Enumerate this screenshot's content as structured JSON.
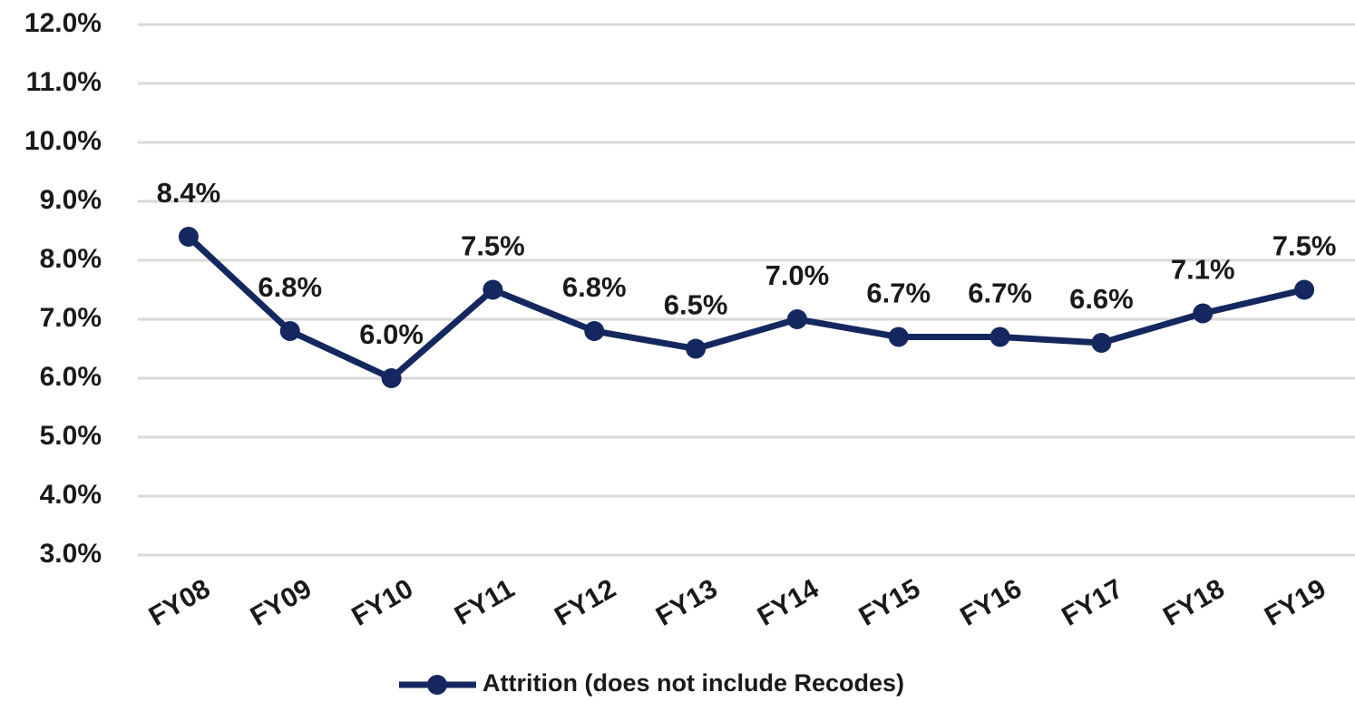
{
  "chart_data": {
    "type": "line",
    "categories": [
      "FY08",
      "FY09",
      "FY10",
      "FY11",
      "FY12",
      "FY13",
      "FY14",
      "FY15",
      "FY16",
      "FY17",
      "FY18",
      "FY19"
    ],
    "series": [
      {
        "name": "Attrition (does not include Recodes)",
        "color": "#14285f",
        "values": [
          8.4,
          6.8,
          6.0,
          7.5,
          6.8,
          6.5,
          7.0,
          6.7,
          6.7,
          6.6,
          7.1,
          7.5
        ],
        "value_labels": [
          "8.4%",
          "6.8%",
          "6.0%",
          "7.5%",
          "6.8%",
          "6.5%",
          "7.0%",
          "6.7%",
          "6.7%",
          "6.6%",
          "7.1%",
          "7.5%"
        ]
      }
    ],
    "ylim": [
      3,
      12
    ],
    "yticks": [
      {
        "value": 3,
        "label": "3.0%"
      },
      {
        "value": 4,
        "label": "4.0%"
      },
      {
        "value": 5,
        "label": "5.0%"
      },
      {
        "value": 6,
        "label": "6.0%"
      },
      {
        "value": 7,
        "label": "7.0%"
      },
      {
        "value": 8,
        "label": "8.0%"
      },
      {
        "value": 9,
        "label": "9.0%"
      },
      {
        "value": 10,
        "label": "10.0%"
      },
      {
        "value": 11,
        "label": "11.0%"
      },
      {
        "value": 12,
        "label": "12.0%"
      }
    ],
    "grid": true,
    "legend": "bottom"
  }
}
